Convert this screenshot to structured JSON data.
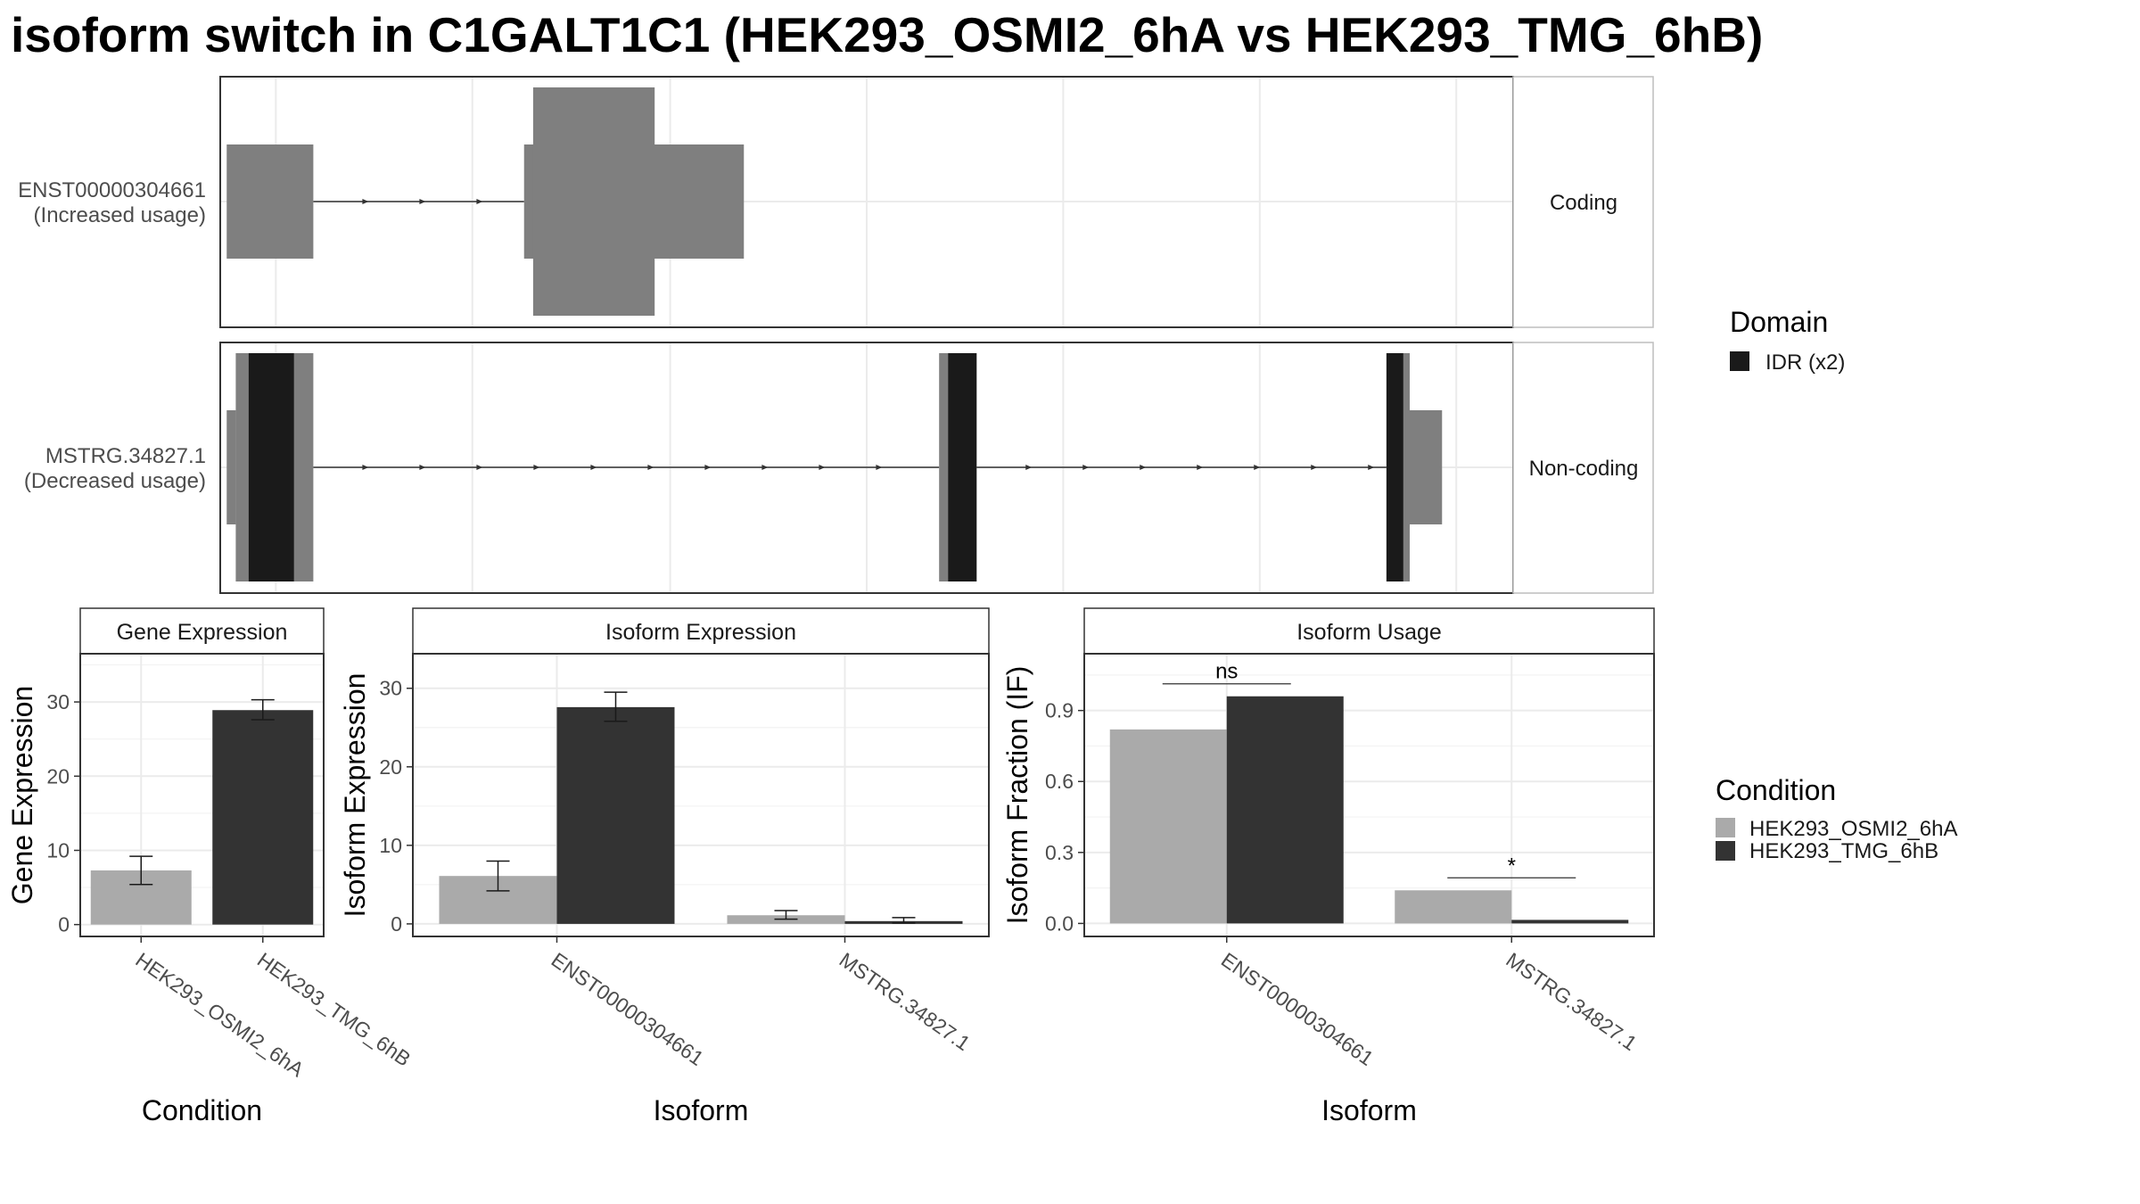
{
  "title": "isoform switch in C1GALT1C1 (HEK293_OSMI2_6hA vs HEK293_TMG_6hB)",
  "colors": {
    "exon": "#7f7f7f",
    "domain": "#1a1a1a",
    "bar_a": "#aaaaaa",
    "bar_b": "#333333",
    "grid": "#ebebeb",
    "border": "#333333"
  },
  "transcripts": [
    {
      "id": "ENST00000304661",
      "note": "(Increased usage)",
      "type_label": "Coding",
      "strand": "+",
      "exons": [
        {
          "start": 0.5,
          "end": 7.2,
          "kind": "noncoding_or_utr"
        },
        {
          "start": 23.5,
          "end": 40.5,
          "kind": "coding_with_cds_core",
          "cds_start": 24.2,
          "cds_end": 33.6
        }
      ],
      "domains": []
    },
    {
      "id": "MSTRG.34827.1",
      "note": "(Decreased usage)",
      "type_label": "Non-coding",
      "strand": "+",
      "exons": [
        {
          "start": 0.5,
          "end": 7.2,
          "kind": "exon",
          "notch_start": 1.2
        },
        {
          "start": 55.6,
          "end": 58.5,
          "kind": "exon"
        },
        {
          "start": 90.2,
          "end": 94.5,
          "kind": "exon",
          "utr_start": 92.0
        }
      ],
      "domains": [
        {
          "start": 2.2,
          "end": 5.7,
          "name": "IDR"
        },
        {
          "start": 56.3,
          "end": 58.5,
          "name": "IDR"
        },
        {
          "start": 90.2,
          "end": 91.5,
          "name": "IDR"
        }
      ]
    }
  ],
  "structure_legend": {
    "title": "Domain",
    "items": [
      {
        "label": "IDR (x2)",
        "color": "#1a1a1a"
      }
    ]
  },
  "condition_legend": {
    "title": "Condition",
    "items": [
      {
        "label": "HEK293_OSMI2_6hA",
        "color": "#aaaaaa"
      },
      {
        "label": "HEK293_TMG_6hB",
        "color": "#333333"
      }
    ]
  },
  "chart_data": [
    {
      "type": "bar",
      "title": "Gene Expression",
      "xlabel": "Condition",
      "ylabel": "Gene Expression",
      "categories": [
        "HEK293_OSMI2_6hA",
        "HEK293_TMG_6hB"
      ],
      "values": [
        7.3,
        28.9
      ],
      "error_low": [
        5.4,
        27.6
      ],
      "error_high": [
        9.2,
        30.3
      ],
      "yticks": [
        0,
        10,
        20,
        30
      ],
      "ylim": [
        -1.6,
        36.5
      ]
    },
    {
      "type": "bar",
      "title": "Isoform Expression",
      "xlabel": "Isoform",
      "ylabel": "Isoform Expression",
      "categories": [
        "ENST00000304661",
        "MSTRG.34827.1"
      ],
      "series": [
        {
          "name": "HEK293_OSMI2_6hA",
          "values": [
            6.1,
            1.1
          ],
          "error_low": [
            4.2,
            0.6
          ],
          "error_high": [
            8.0,
            1.7
          ]
        },
        {
          "name": "HEK293_TMG_6hB",
          "values": [
            27.6,
            0.35
          ],
          "error_low": [
            25.8,
            0.1
          ],
          "error_high": [
            29.5,
            0.8
          ]
        }
      ],
      "yticks": [
        0,
        10,
        20,
        30
      ],
      "ylim": [
        -1.6,
        34.4
      ]
    },
    {
      "type": "bar",
      "title": "Isoform Usage",
      "xlabel": "Isoform",
      "ylabel": "Isoform Fraction (IF)",
      "categories": [
        "ENST00000304661",
        "MSTRG.34827.1"
      ],
      "series": [
        {
          "name": "HEK293_OSMI2_6hA",
          "values": [
            0.82,
            0.14
          ]
        },
        {
          "name": "HEK293_TMG_6hB",
          "values": [
            0.96,
            0.015
          ]
        }
      ],
      "significance": [
        "ns",
        "*"
      ],
      "yticks": [
        0.0,
        0.3,
        0.6,
        0.9
      ],
      "ytick_labels": [
        "0.0",
        "0.3",
        "0.6",
        "0.9"
      ],
      "ylim": [
        -0.055,
        1.14
      ]
    }
  ]
}
